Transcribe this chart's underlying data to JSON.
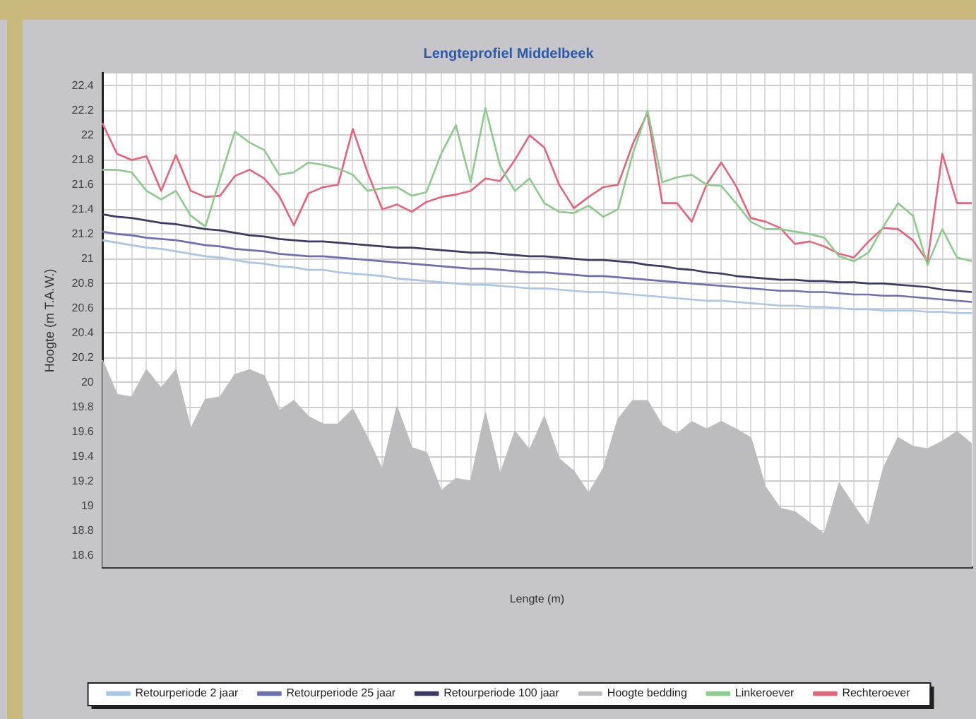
{
  "chart_data": {
    "type": "line",
    "title": "Lengteprofiel Middelbeek",
    "xlabel": "Lengte (m)",
    "ylabel": "Hoogte (m T.A.W.)",
    "categories": [
      null,
      null,
      null,
      null,
      null,
      null,
      null,
      null,
      null,
      null,
      null,
      null,
      null,
      null,
      null,
      null,
      null,
      null,
      null,
      null,
      null,
      null,
      null,
      null,
      null,
      null,
      null,
      null,
      null,
      null,
      null,
      null,
      null,
      null,
      null,
      null,
      null,
      null,
      null,
      null,
      null,
      null,
      null,
      null,
      null,
      null,
      null,
      null,
      null,
      null,
      null,
      null,
      null,
      null,
      null,
      null,
      null,
      null,
      null,
      null
    ],
    "series": [
      {
        "name": "Retourperiode 2 jaar",
        "color": "#a9c6e6",
        "values": [
          21.15,
          21.13,
          21.11,
          21.09,
          21.08,
          21.06,
          21.04,
          21.02,
          21.01,
          20.99,
          20.97,
          20.96,
          20.94,
          20.93,
          20.91,
          20.91,
          20.89,
          20.88,
          20.87,
          20.86,
          20.84,
          20.83,
          20.82,
          20.81,
          20.8,
          20.79,
          20.79,
          20.78,
          20.77,
          20.76,
          20.76,
          20.75,
          20.74,
          20.73,
          20.73,
          20.72,
          20.71,
          20.7,
          20.69,
          20.68,
          20.67,
          20.66,
          20.66,
          20.65,
          20.64,
          20.63,
          20.62,
          20.62,
          20.61,
          20.61,
          20.6,
          20.59,
          20.59,
          20.58,
          20.58,
          20.58,
          20.57,
          20.57,
          20.56,
          20.56
        ]
      },
      {
        "name": "Retourperiode 25 jaar",
        "color": "#6d6fb0",
        "values": [
          21.22,
          21.2,
          21.19,
          21.17,
          21.16,
          21.15,
          21.13,
          21.11,
          21.1,
          21.08,
          21.07,
          21.06,
          21.04,
          21.03,
          21.02,
          21.02,
          21.01,
          21.0,
          20.99,
          20.98,
          20.97,
          20.96,
          20.95,
          20.94,
          20.93,
          20.92,
          20.92,
          20.91,
          20.9,
          20.89,
          20.89,
          20.88,
          20.87,
          20.86,
          20.86,
          20.85,
          20.84,
          20.83,
          20.82,
          20.81,
          20.8,
          20.79,
          20.78,
          20.77,
          20.76,
          20.75,
          20.74,
          20.74,
          20.73,
          20.73,
          20.72,
          20.71,
          20.71,
          20.7,
          20.7,
          20.69,
          20.68,
          20.67,
          20.66,
          20.65
        ]
      },
      {
        "name": "Retourperiode 100 jaar",
        "color": "#3b3b66",
        "values": [
          21.36,
          21.34,
          21.33,
          21.31,
          21.29,
          21.28,
          21.26,
          21.24,
          21.23,
          21.21,
          21.19,
          21.18,
          21.16,
          21.15,
          21.14,
          21.14,
          21.13,
          21.12,
          21.11,
          21.1,
          21.09,
          21.09,
          21.08,
          21.07,
          21.06,
          21.05,
          21.05,
          21.04,
          21.03,
          21.02,
          21.02,
          21.01,
          21.0,
          20.99,
          20.99,
          20.98,
          20.97,
          20.95,
          20.94,
          20.92,
          20.91,
          20.89,
          20.88,
          20.86,
          20.85,
          20.84,
          20.83,
          20.83,
          20.82,
          20.82,
          20.81,
          20.81,
          20.8,
          20.8,
          20.79,
          20.78,
          20.77,
          20.75,
          20.74,
          20.73
        ]
      },
      {
        "name": "Hoogte bedding",
        "type": "area",
        "color": "#bcbcc0",
        "values": [
          20.18,
          19.9,
          19.88,
          20.1,
          19.95,
          20.1,
          19.62,
          19.86,
          19.88,
          20.06,
          20.1,
          20.05,
          19.77,
          19.85,
          19.72,
          19.66,
          19.66,
          19.78,
          19.55,
          19.29,
          19.8,
          19.47,
          19.43,
          19.12,
          19.22,
          19.2,
          19.75,
          19.25,
          19.6,
          19.45,
          19.72,
          19.38,
          19.28,
          19.1,
          19.3,
          19.7,
          19.85,
          19.85,
          19.65,
          19.58,
          19.68,
          19.62,
          19.68,
          19.62,
          19.55,
          19.15,
          18.98,
          18.95,
          18.86,
          18.77,
          19.18,
          19.0,
          18.83,
          19.3,
          19.55,
          19.48,
          19.46,
          19.52,
          19.6,
          19.5
        ]
      },
      {
        "name": "Linkeroever",
        "color": "#8ccb8c",
        "values": [
          21.72,
          21.72,
          21.7,
          21.55,
          21.48,
          21.55,
          21.35,
          21.26,
          21.65,
          22.03,
          21.94,
          21.88,
          21.68,
          21.7,
          21.78,
          21.76,
          21.73,
          21.68,
          21.55,
          21.57,
          21.58,
          21.51,
          21.54,
          21.85,
          22.08,
          21.62,
          22.22,
          21.75,
          21.55,
          21.65,
          21.45,
          21.38,
          21.37,
          21.43,
          21.34,
          21.4,
          21.85,
          22.2,
          21.62,
          21.66,
          21.68,
          21.6,
          21.59,
          21.45,
          21.3,
          21.24,
          21.24,
          21.22,
          21.2,
          21.17,
          21.02,
          20.98,
          21.05,
          21.26,
          21.45,
          21.35,
          20.95,
          21.24,
          21.01,
          20.98
        ]
      },
      {
        "name": "Rechteroever",
        "color": "#e4647c",
        "values": [
          22.1,
          21.85,
          21.8,
          21.83,
          21.55,
          21.84,
          21.55,
          21.5,
          21.51,
          21.67,
          21.72,
          21.65,
          21.51,
          21.27,
          21.53,
          21.58,
          21.6,
          22.05,
          21.7,
          21.4,
          21.44,
          21.38,
          21.46,
          21.5,
          21.52,
          21.55,
          21.65,
          21.63,
          21.8,
          22.0,
          21.9,
          21.6,
          21.41,
          21.5,
          21.58,
          21.6,
          21.93,
          22.18,
          21.45,
          21.45,
          21.3,
          21.6,
          21.78,
          21.59,
          21.33,
          21.3,
          21.25,
          21.12,
          21.14,
          21.1,
          21.04,
          21.01,
          21.14,
          21.25,
          21.24,
          21.15,
          20.98,
          21.85,
          21.45,
          21.45
        ]
      }
    ],
    "ylim": [
      18.5,
      22.5
    ],
    "yticks": [
      18.6,
      18.8,
      19,
      19.2,
      19.4,
      19.6,
      19.8,
      20,
      20.2,
      20.4,
      20.6,
      20.8,
      21,
      21.2,
      21.4,
      21.6,
      21.8,
      22,
      22.2,
      22.4
    ],
    "grid": true,
    "legend": "bottom",
    "marker": "none",
    "line_style": "solid"
  }
}
